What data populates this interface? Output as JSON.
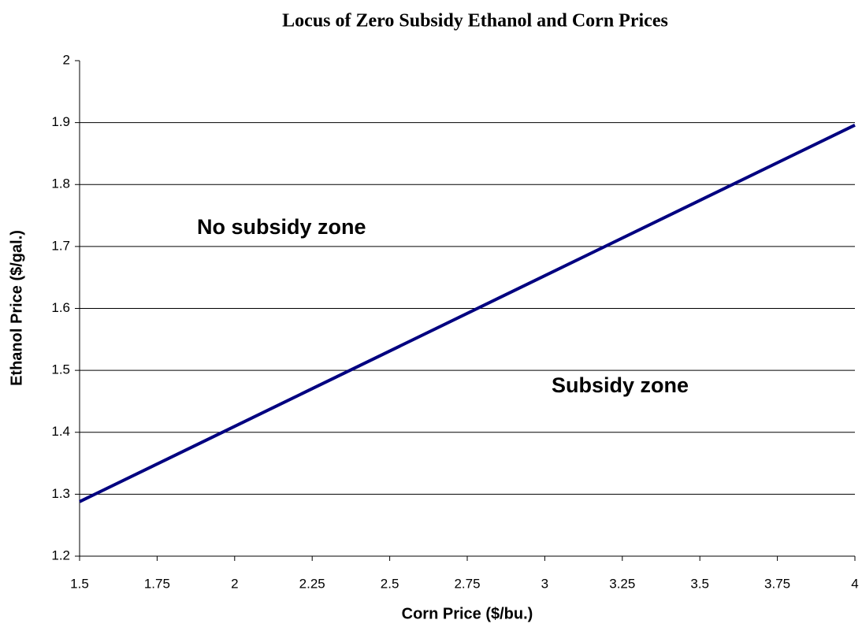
{
  "chart_data": {
    "type": "line",
    "title": "Locus of Zero Subsidy Ethanol and Corn Prices",
    "x_label": "Corn Price ($/bu.)",
    "y_label": "Ethanol Price ($/gal.)",
    "annotations": [
      "No subsidy zone",
      "Subsidy zone"
    ],
    "x": [
      1.5,
      4
    ],
    "series": [
      {
        "color": "#000080",
        "values": [
          1.288,
          1.896
        ]
      }
    ],
    "xlim": [
      1.5,
      4
    ],
    "xticks": [
      1.5,
      1.75,
      2,
      2.25,
      2.5,
      2.75,
      3,
      3.25,
      3.5,
      3.75,
      4
    ],
    "ylim": [
      1.2,
      2
    ],
    "yticks": [
      1.2,
      1.3,
      1.4,
      1.5,
      1.6,
      1.7,
      1.8,
      1.9,
      2
    ],
    "grid": true
  }
}
